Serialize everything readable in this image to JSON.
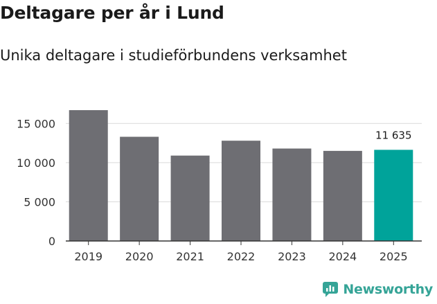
{
  "header": {
    "title": "Deltagare per år i Lund",
    "subtitle": "Unika deltagare i studieförbundens verksamhet"
  },
  "brand": {
    "name": "Newsworthy",
    "icon": "newsworthy-logo-icon",
    "color": "#35a497"
  },
  "colors": {
    "bar": "#6e6e73",
    "highlight": "#00a39a",
    "grid": "#d9d9d9",
    "axis": "#333333"
  },
  "chart_data": {
    "type": "bar",
    "categories": [
      "2019",
      "2020",
      "2021",
      "2022",
      "2023",
      "2024",
      "2025"
    ],
    "values": [
      16700,
      13300,
      10900,
      12800,
      11800,
      11500,
      11635
    ],
    "highlight_index": 6,
    "data_labels": [
      {
        "index": 6,
        "text": "11 635"
      }
    ],
    "yticks": [
      0,
      5000,
      10000,
      15000
    ],
    "ytick_labels": [
      "0",
      "5 000",
      "10 000",
      "15 000"
    ],
    "ylim": [
      0,
      17500
    ],
    "grid": true,
    "title": "Deltagare per år i Lund",
    "xlabel": "",
    "ylabel": ""
  }
}
